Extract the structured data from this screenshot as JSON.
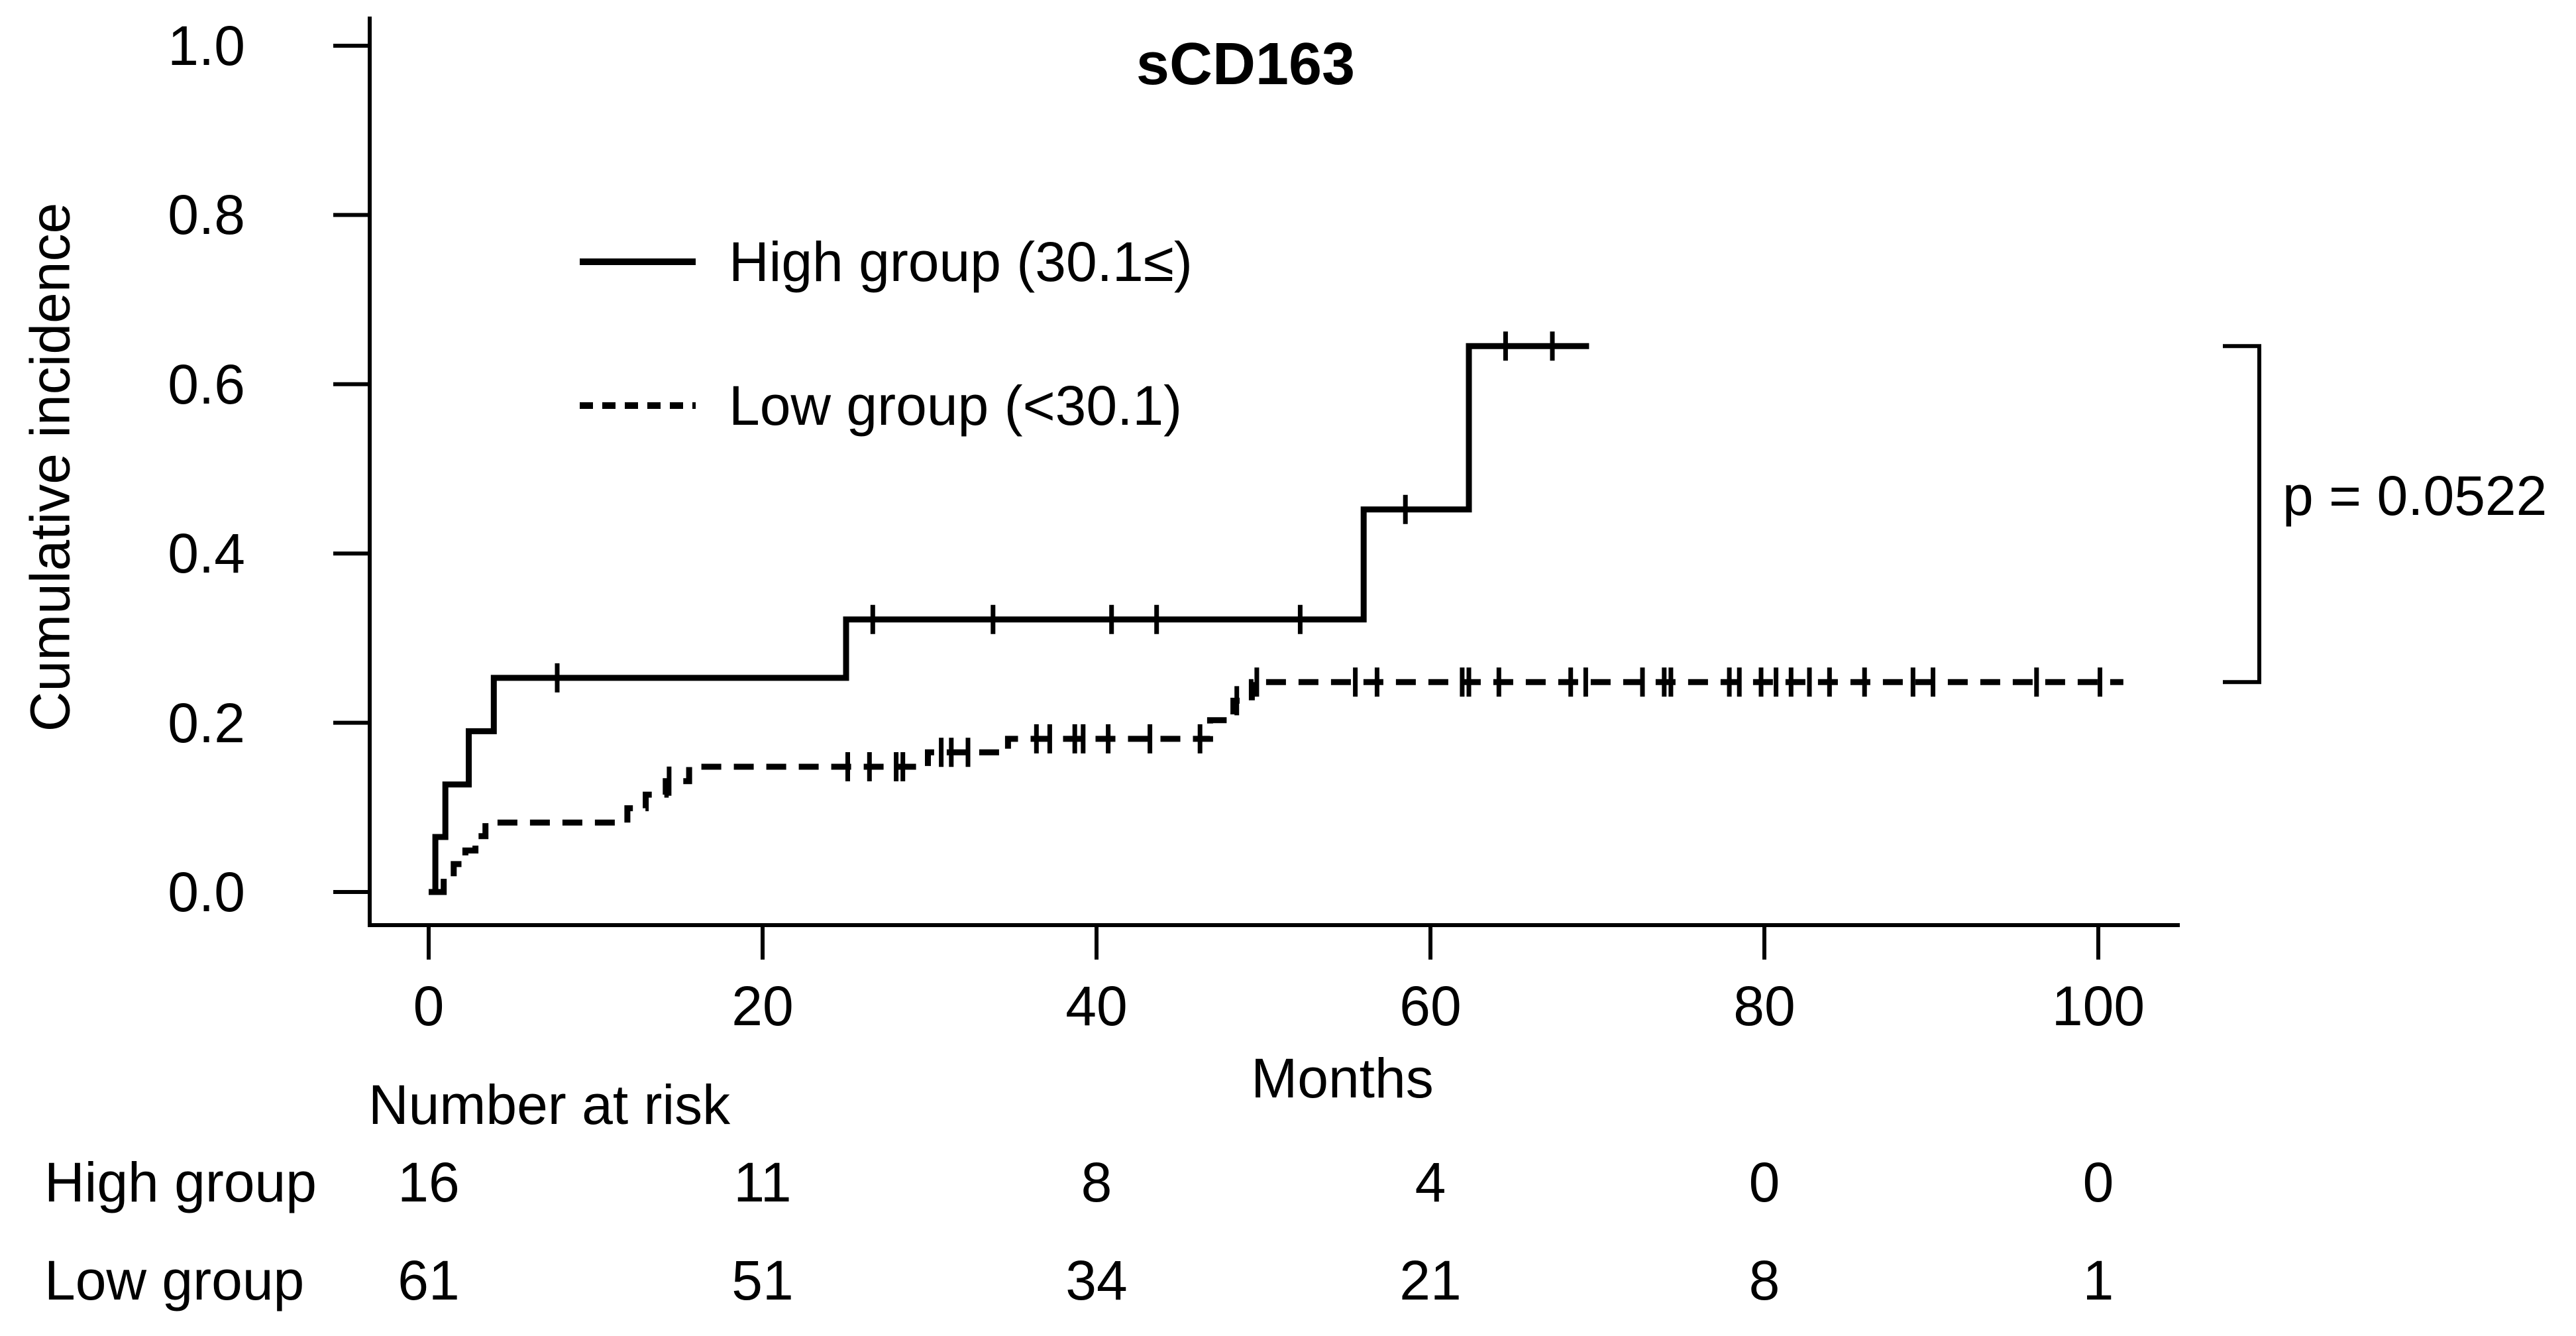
{
  "title": "sCD163",
  "y_axis": {
    "label": "Cumulative incidence",
    "ticks": [
      "1.0",
      "0.8",
      "0.6",
      "0.4",
      "0.2",
      "0.0"
    ]
  },
  "x_axis": {
    "label": "Months",
    "ticks": [
      "0",
      "20",
      "40",
      "60",
      "80",
      "100"
    ]
  },
  "legend": {
    "items": [
      {
        "label": "High group (30.1≤)",
        "style": "solid"
      },
      {
        "label": "Low group (<30.1)",
        "style": "dashed"
      }
    ]
  },
  "annotation": {
    "p_value": "p = 0.0522"
  },
  "risk_table": {
    "header": "Number at risk",
    "rows": [
      {
        "label": "High group",
        "counts": [
          "16",
          "11",
          "8",
          "4",
          "0",
          "0"
        ]
      },
      {
        "label": "Low group",
        "counts": [
          "61",
          "51",
          "34",
          "21",
          "8",
          "1"
        ]
      }
    ]
  },
  "chart_data": {
    "type": "line",
    "variant": "step-cumulative-incidence",
    "title": "sCD163",
    "xlabel": "Months",
    "ylabel": "Cumulative incidence",
    "xlim": [
      0,
      104
    ],
    "ylim": [
      0,
      1.0
    ],
    "x_ticks": [
      0,
      20,
      40,
      60,
      80,
      100
    ],
    "y_ticks": [
      1.0,
      0.8,
      0.6,
      0.4,
      0.2,
      0.0
    ],
    "grid": false,
    "legend_position": "upper-left-inside",
    "p_value": 0.0522,
    "series": [
      {
        "name": "High group (30.1≤)",
        "n": 16,
        "line": "solid",
        "color": "#000000",
        "steps": [
          [
            0,
            0
          ],
          [
            0.4,
            0.065
          ],
          [
            1.0,
            0.127
          ],
          [
            2.4,
            0.19
          ],
          [
            3.9,
            0.253
          ],
          [
            25.0,
            0.322
          ],
          [
            56.0,
            0.452
          ],
          [
            62.3,
            0.645
          ]
        ],
        "end_time": 69.5,
        "censor_times": [
          7.7,
          26.6,
          33.8,
          40.9,
          43.6,
          52.2,
          58.5,
          64.5,
          67.3
        ],
        "number_at_risk": [
          16,
          11,
          8,
          4,
          0,
          0
        ]
      },
      {
        "name": "Low group (<30.1)",
        "n": 61,
        "line": "dashed",
        "color": "#000000",
        "steps": [
          [
            0.5,
            0
          ],
          [
            0.9,
            0.016
          ],
          [
            1.5,
            0.033
          ],
          [
            2.2,
            0.049
          ],
          [
            2.8,
            0.066
          ],
          [
            3.4,
            0.082
          ],
          [
            11.9,
            0.099
          ],
          [
            13.0,
            0.115
          ],
          [
            14.2,
            0.131
          ],
          [
            15.6,
            0.148
          ],
          [
            29.9,
            0.165
          ],
          [
            34.7,
            0.181
          ],
          [
            46.8,
            0.203
          ],
          [
            48.2,
            0.226
          ],
          [
            49.3,
            0.248
          ]
        ],
        "end_time": 101.5,
        "censor_times": [
          14.4,
          25.1,
          26.4,
          28.0,
          28.4,
          30.7,
          31.3,
          32.3,
          36.4,
          37.2,
          38.7,
          39.2,
          40.7,
          43.2,
          46.2,
          48.4,
          49.6,
          55.5,
          56.8,
          61.9,
          62.3,
          64.1,
          68.4,
          69.3,
          72.7,
          74.0,
          74.4,
          77.9,
          78.5,
          79.8,
          80.7,
          81.6,
          82.7,
          83.9,
          86.0,
          88.9,
          90.1,
          96.3,
          100.1
        ],
        "number_at_risk": [
          61,
          51,
          34,
          21,
          8,
          1
        ]
      }
    ]
  }
}
